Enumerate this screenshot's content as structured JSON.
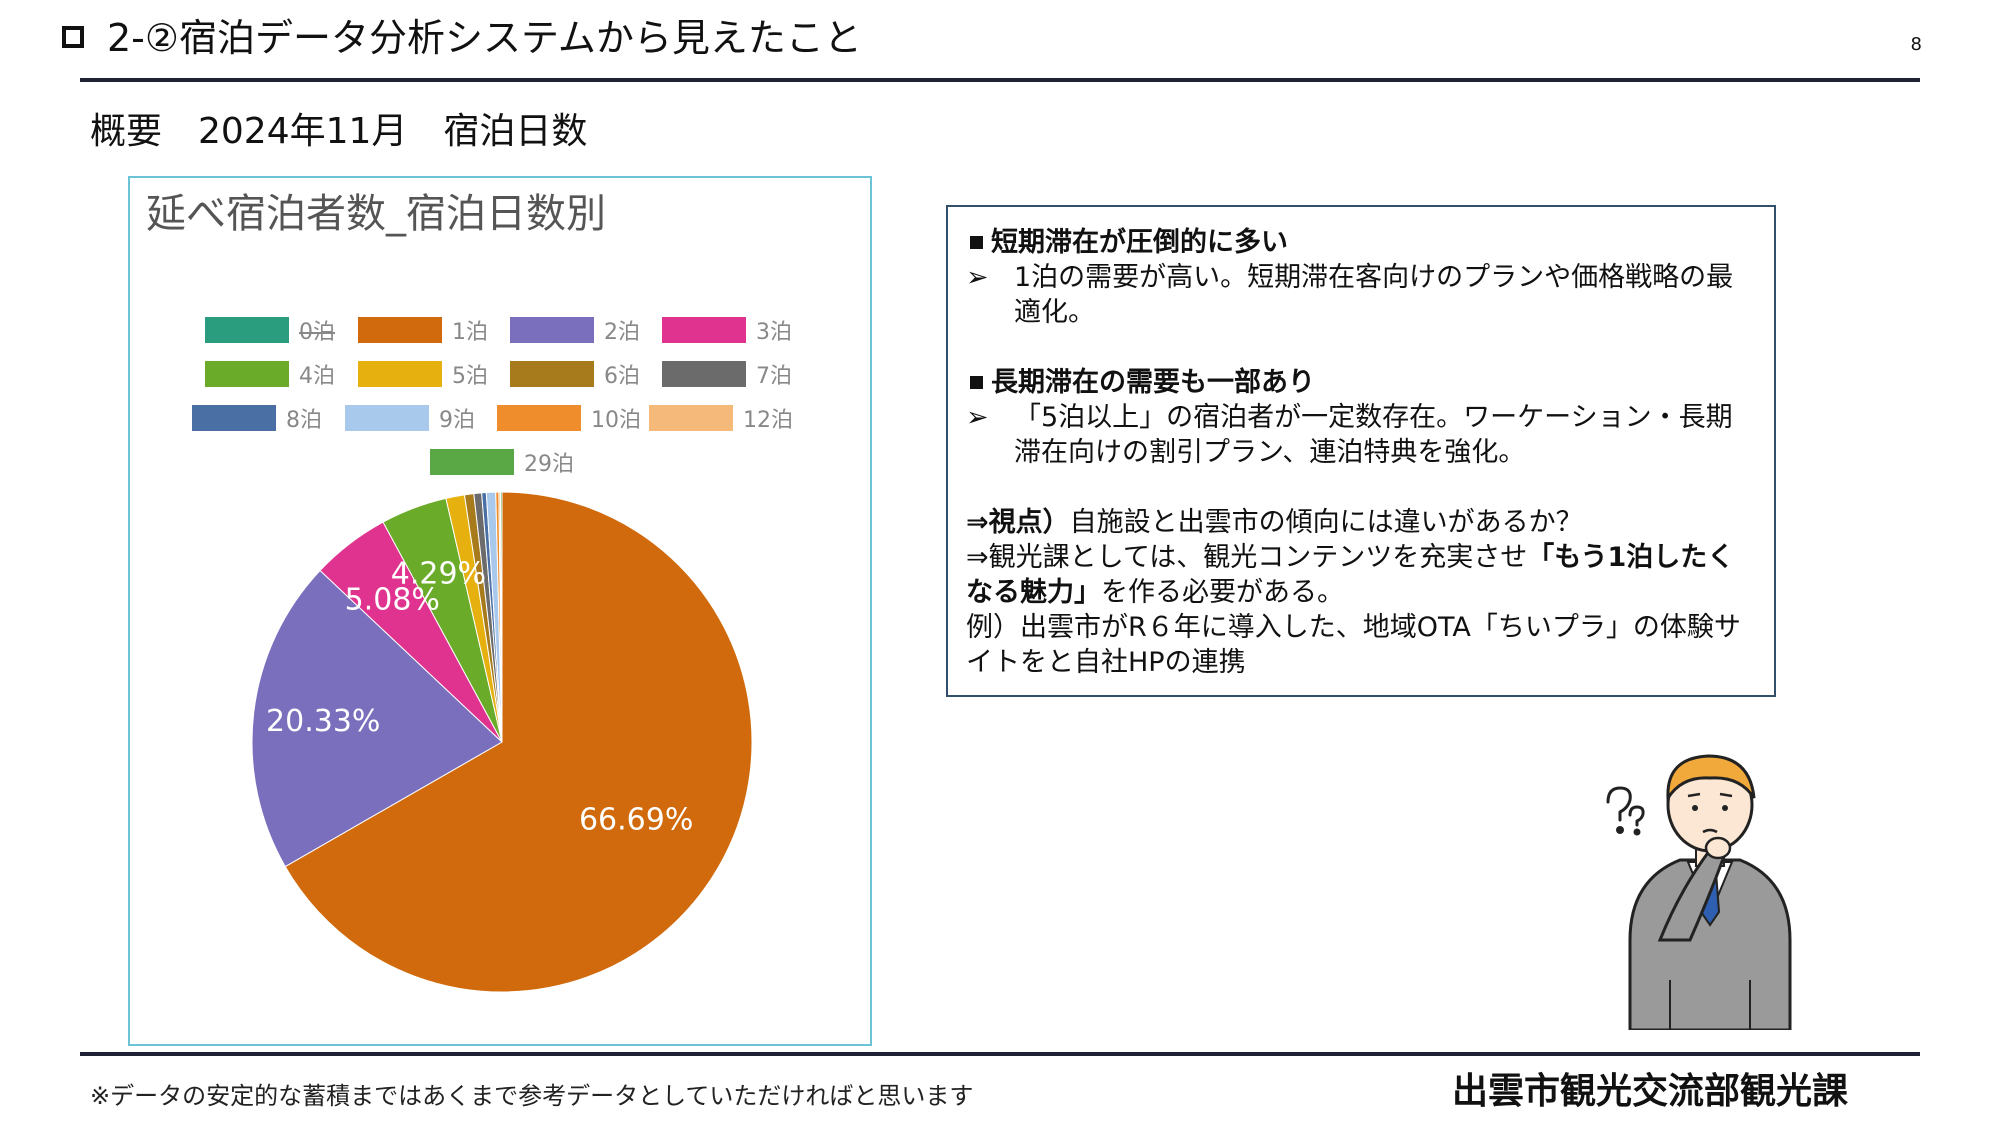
{
  "header": {
    "title": "2-②宿泊データ分析システムから見えたこと",
    "page_number": "8"
  },
  "subtitle": "概要　2024年11月　宿泊日数",
  "chart_data": {
    "type": "pie",
    "title": "延べ宿泊者数_宿泊日数別",
    "legend_position": "top",
    "categories": [
      "0泊",
      "1泊",
      "2泊",
      "3泊",
      "4泊",
      "5泊",
      "6泊",
      "7泊",
      "8泊",
      "9泊",
      "10泊",
      "12泊",
      "29泊"
    ],
    "values": [
      0.0,
      66.69,
      20.33,
      5.08,
      4.29,
      1.2,
      0.6,
      0.5,
      0.3,
      0.6,
      0.2,
      0.1,
      0.1
    ],
    "colors": [
      "#2a9d7f",
      "#d06a0c",
      "#7a6fbd",
      "#e0338f",
      "#6aac2a",
      "#e6b10e",
      "#a77a1c",
      "#6b6b6b",
      "#4a6fa5",
      "#a9c9ec",
      "#ef8d2c",
      "#f5b97a",
      "#5aa845"
    ],
    "data_labels": [
      {
        "category": "1泊",
        "text": "66.69%"
      },
      {
        "category": "2泊",
        "text": "20.33%"
      },
      {
        "category": "3泊",
        "text": "5.08%"
      },
      {
        "category": "4泊",
        "text": "4.29%"
      }
    ]
  },
  "panel": {
    "h1": "短期滞在が圧倒的に多い",
    "b1": "1泊の需要が高い。短期滞在客向けのプランや価格戦略の最適化。",
    "h2": "長期滞在の需要も一部あり",
    "b2": "「5泊以上」の宿泊者が一定数存在。ワーケーション・長期滞在向けの割引プラン、連泊特典を強化。",
    "l1_bold": "⇒視点）",
    "l1_rest": "自施設と出雲市の傾向には違いがあるか？",
    "l2_a": "⇒観光課としては、観光コンテンツを充実させ",
    "l2_bold": "「もう1泊したくなる魅力」",
    "l2_c": "を作る必要がある。",
    "l3": "例）出雲市がR６年に導入した、地域OTA「ちいプラ」の体験サイトをと自社HPの連携"
  },
  "footer": {
    "note": "※データの安定的な蓄積まではあくまで参考データとしていただければと思います",
    "dept": "出雲市観光交流部観光課"
  }
}
